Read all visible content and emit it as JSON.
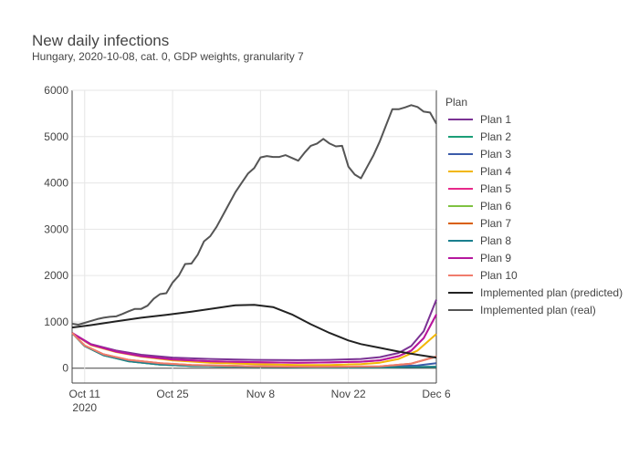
{
  "chart_data": {
    "type": "line",
    "title": "New daily infections",
    "subtitle": "Hungary, 2020-10-08, cat. 0, GDP weights, granularity 7",
    "xlabel": "",
    "ylabel": "",
    "x_start": "2020-10-08",
    "x_ticks": [
      {
        "day": 3,
        "label": "Oct 11",
        "sub": "2020"
      },
      {
        "day": 17,
        "label": "Oct 25",
        "sub": ""
      },
      {
        "day": 31,
        "label": "Nov 8",
        "sub": ""
      },
      {
        "day": 45,
        "label": "Nov 22",
        "sub": ""
      },
      {
        "day": 59,
        "label": "Dec 6",
        "sub": ""
      }
    ],
    "xlim": [
      1,
      59
    ],
    "ylim": [
      -320,
      6000
    ],
    "y_ticks": [
      0,
      1000,
      2000,
      3000,
      4000,
      5000,
      6000
    ],
    "grid": true,
    "legend_title": "Plan",
    "legend_position": "right",
    "series": [
      {
        "name": "Plan 1",
        "color": "#7b3294",
        "points": [
          [
            1,
            760
          ],
          [
            4,
            520
          ],
          [
            8,
            380
          ],
          [
            12,
            290
          ],
          [
            17,
            230
          ],
          [
            23,
            200
          ],
          [
            30,
            180
          ],
          [
            37,
            175
          ],
          [
            42,
            180
          ],
          [
            47,
            200
          ],
          [
            50,
            240
          ],
          [
            53,
            330
          ],
          [
            55,
            480
          ],
          [
            57,
            800
          ],
          [
            59,
            1480
          ]
        ]
      },
      {
        "name": "Plan 2",
        "color": "#1b9e77",
        "points": [
          [
            1,
            760
          ],
          [
            3,
            480
          ],
          [
            6,
            280
          ],
          [
            10,
            150
          ],
          [
            15,
            80
          ],
          [
            20,
            50
          ],
          [
            30,
            30
          ],
          [
            40,
            20
          ],
          [
            50,
            20
          ],
          [
            59,
            30
          ]
        ]
      },
      {
        "name": "Plan 3",
        "color": "#3b5ba9",
        "points": [
          [
            1,
            760
          ],
          [
            3,
            480
          ],
          [
            6,
            280
          ],
          [
            10,
            160
          ],
          [
            15,
            90
          ],
          [
            20,
            60
          ],
          [
            30,
            40
          ],
          [
            40,
            30
          ],
          [
            50,
            35
          ],
          [
            56,
            60
          ],
          [
            59,
            110
          ]
        ]
      },
      {
        "name": "Plan 4",
        "color": "#f2b705",
        "points": [
          [
            1,
            760
          ],
          [
            4,
            500
          ],
          [
            8,
            350
          ],
          [
            12,
            250
          ],
          [
            17,
            170
          ],
          [
            23,
            120
          ],
          [
            30,
            90
          ],
          [
            37,
            70
          ],
          [
            42,
            70
          ],
          [
            47,
            90
          ],
          [
            50,
            120
          ],
          [
            53,
            200
          ],
          [
            56,
            380
          ],
          [
            59,
            740
          ]
        ]
      },
      {
        "name": "Plan 5",
        "color": "#e7298a",
        "points": [
          [
            1,
            760
          ],
          [
            4,
            510
          ],
          [
            8,
            360
          ],
          [
            12,
            260
          ],
          [
            17,
            190
          ],
          [
            23,
            150
          ],
          [
            30,
            130
          ],
          [
            37,
            120
          ],
          [
            42,
            125
          ],
          [
            47,
            140
          ],
          [
            50,
            170
          ],
          [
            53,
            260
          ],
          [
            55,
            380
          ],
          [
            57,
            650
          ],
          [
            59,
            1160
          ]
        ]
      },
      {
        "name": "Plan 6",
        "color": "#7fc241",
        "points": [
          [
            1,
            760
          ],
          [
            3,
            480
          ],
          [
            6,
            280
          ],
          [
            10,
            150
          ],
          [
            15,
            80
          ],
          [
            20,
            50
          ],
          [
            30,
            30
          ],
          [
            40,
            20
          ],
          [
            50,
            20
          ],
          [
            59,
            30
          ]
        ]
      },
      {
        "name": "Plan 7",
        "color": "#d95f02",
        "points": [
          [
            1,
            760
          ],
          [
            3,
            490
          ],
          [
            6,
            300
          ],
          [
            10,
            180
          ],
          [
            15,
            110
          ],
          [
            20,
            70
          ],
          [
            30,
            40
          ],
          [
            40,
            30
          ],
          [
            50,
            40
          ],
          [
            55,
            100
          ],
          [
            59,
            250
          ]
        ]
      },
      {
        "name": "Plan 8",
        "color": "#1a7f8e",
        "points": [
          [
            1,
            760
          ],
          [
            3,
            480
          ],
          [
            6,
            280
          ],
          [
            10,
            150
          ],
          [
            15,
            80
          ],
          [
            20,
            50
          ],
          [
            30,
            30
          ],
          [
            40,
            20
          ],
          [
            50,
            20
          ],
          [
            59,
            30
          ]
        ]
      },
      {
        "name": "Plan 9",
        "color": "#b5179e",
        "points": [
          [
            1,
            760
          ],
          [
            4,
            510
          ],
          [
            8,
            360
          ],
          [
            12,
            260
          ],
          [
            17,
            190
          ],
          [
            23,
            150
          ],
          [
            30,
            130
          ],
          [
            37,
            120
          ],
          [
            42,
            125
          ],
          [
            47,
            140
          ],
          [
            50,
            170
          ],
          [
            53,
            260
          ],
          [
            55,
            380
          ],
          [
            57,
            650
          ],
          [
            59,
            1160
          ]
        ]
      },
      {
        "name": "Plan 10",
        "color": "#f07c6c",
        "points": [
          [
            1,
            760
          ],
          [
            3,
            490
          ],
          [
            6,
            300
          ],
          [
            10,
            180
          ],
          [
            15,
            110
          ],
          [
            20,
            70
          ],
          [
            30,
            40
          ],
          [
            40,
            30
          ],
          [
            50,
            40
          ],
          [
            55,
            100
          ],
          [
            59,
            250
          ]
        ]
      },
      {
        "name": "Implemented plan (predicted)",
        "color": "#222222",
        "points": [
          [
            1,
            880
          ],
          [
            4,
            930
          ],
          [
            8,
            1010
          ],
          [
            12,
            1090
          ],
          [
            16,
            1150
          ],
          [
            20,
            1220
          ],
          [
            24,
            1300
          ],
          [
            27,
            1360
          ],
          [
            30,
            1370
          ],
          [
            33,
            1320
          ],
          [
            36,
            1160
          ],
          [
            39,
            950
          ],
          [
            42,
            760
          ],
          [
            45,
            600
          ],
          [
            47,
            520
          ],
          [
            50,
            440
          ],
          [
            53,
            360
          ],
          [
            56,
            290
          ],
          [
            59,
            230
          ]
        ]
      },
      {
        "name": "Implemented plan (real)",
        "color": "#555555",
        "points": [
          [
            1,
            960
          ],
          [
            2,
            940
          ],
          [
            3,
            980
          ],
          [
            4,
            1020
          ],
          [
            5,
            1060
          ],
          [
            6,
            1090
          ],
          [
            7,
            1110
          ],
          [
            8,
            1120
          ],
          [
            9,
            1170
          ],
          [
            10,
            1230
          ],
          [
            11,
            1280
          ],
          [
            12,
            1280
          ],
          [
            13,
            1350
          ],
          [
            14,
            1500
          ],
          [
            15,
            1600
          ],
          [
            16,
            1620
          ],
          [
            17,
            1850
          ],
          [
            18,
            2000
          ],
          [
            19,
            2250
          ],
          [
            20,
            2260
          ],
          [
            21,
            2450
          ],
          [
            22,
            2740
          ],
          [
            23,
            2850
          ],
          [
            24,
            3050
          ],
          [
            25,
            3300
          ],
          [
            26,
            3550
          ],
          [
            27,
            3800
          ],
          [
            28,
            4000
          ],
          [
            29,
            4200
          ],
          [
            30,
            4320
          ],
          [
            31,
            4550
          ],
          [
            32,
            4580
          ],
          [
            33,
            4560
          ],
          [
            34,
            4560
          ],
          [
            35,
            4600
          ],
          [
            36,
            4540
          ],
          [
            37,
            4480
          ],
          [
            38,
            4650
          ],
          [
            39,
            4800
          ],
          [
            40,
            4850
          ],
          [
            41,
            4950
          ],
          [
            42,
            4850
          ],
          [
            43,
            4790
          ],
          [
            44,
            4800
          ],
          [
            45,
            4350
          ],
          [
            46,
            4180
          ],
          [
            47,
            4100
          ],
          [
            48,
            4350
          ],
          [
            49,
            4600
          ],
          [
            50,
            4900
          ],
          [
            51,
            5250
          ],
          [
            52,
            5590
          ],
          [
            53,
            5590
          ],
          [
            54,
            5630
          ],
          [
            55,
            5680
          ],
          [
            56,
            5640
          ],
          [
            57,
            5540
          ],
          [
            58,
            5520
          ],
          [
            59,
            5280
          ]
        ]
      }
    ]
  }
}
